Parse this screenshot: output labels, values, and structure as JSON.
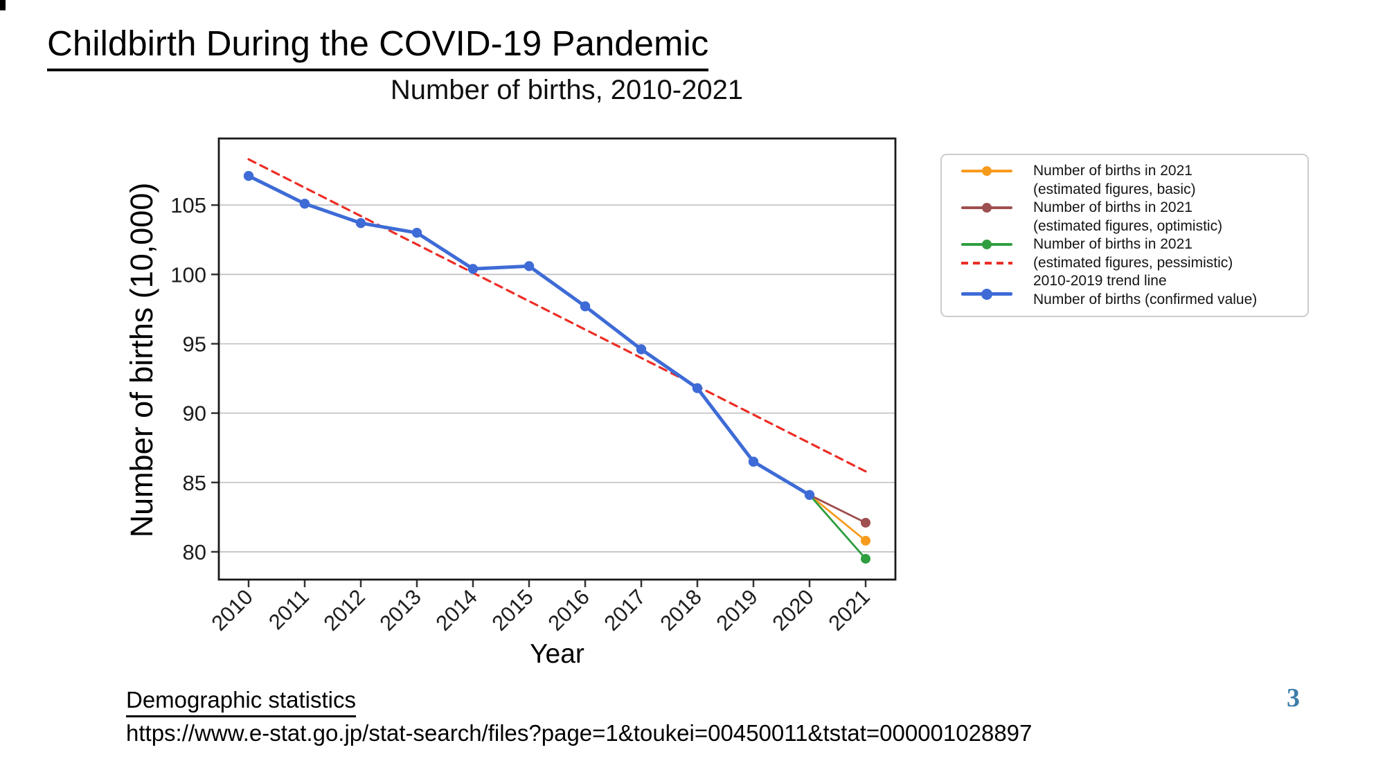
{
  "slide": {
    "heading": "Childbirth During the COVID-19 Pandemic",
    "page_number": "3",
    "source": {
      "label": "Demographic statistics",
      "url": "https://www.e-stat.go.jp/stat-search/files?page=1&toukei=00450011&tstat=000001028897"
    }
  },
  "colors": {
    "confirmed": "#3e6bd6",
    "trend": "#ec2d25",
    "basic": "#f79b1d",
    "optimistic": "#9e4f4f",
    "pessimistic": "#2e9e3e",
    "grid": "#c4c4c4",
    "axis": "#333333",
    "text": "#1d1d1d",
    "page_number": "#3c7dab"
  },
  "chart_data": {
    "type": "line",
    "title": "Number of births, 2010-2021",
    "xlabel": "Year",
    "ylabel": "Number of births (10,000)",
    "x_categories": [
      "2010",
      "2011",
      "2012",
      "2013",
      "2014",
      "2015",
      "2016",
      "2017",
      "2018",
      "2019",
      "2020",
      "2021"
    ],
    "yticks": [
      80,
      85,
      90,
      95,
      100,
      105
    ],
    "ylim": [
      78.0,
      109.8
    ],
    "grid": "horizontal",
    "legend_position": "outside-right",
    "series": [
      {
        "name": "2010-2019 trend line",
        "color_key": "trend",
        "style": "dashed",
        "marker": "none",
        "width": 3.2,
        "dash": "11 8",
        "x": [
          "2010",
          "2021"
        ],
        "values": [
          108.3,
          85.8
        ]
      },
      {
        "name": "Number of births in 2021 (estimated figures, basic)",
        "color_key": "basic",
        "style": "solid",
        "marker": "end",
        "width": 2.8,
        "x": [
          "2020",
          "2021"
        ],
        "values": [
          84.1,
          80.8
        ]
      },
      {
        "name": "Number of births in 2021 (estimated figures, optimistic)",
        "color_key": "optimistic",
        "style": "solid",
        "marker": "end",
        "width": 2.8,
        "x": [
          "2020",
          "2021"
        ],
        "values": [
          84.1,
          82.1
        ]
      },
      {
        "name": "Number of births in 2021 (estimated figures, pessimistic)",
        "color_key": "pessimistic",
        "style": "solid",
        "marker": "end",
        "width": 2.8,
        "x": [
          "2020",
          "2021"
        ],
        "values": [
          84.1,
          79.5
        ]
      },
      {
        "name": "Number of births (confirmed value)",
        "color_key": "confirmed",
        "style": "solid",
        "marker": "all",
        "width": 5,
        "x": [
          "2010",
          "2011",
          "2012",
          "2013",
          "2014",
          "2015",
          "2016",
          "2017",
          "2018",
          "2019",
          "2020"
        ],
        "values": [
          107.1,
          105.1,
          103.7,
          103.0,
          100.4,
          100.6,
          97.7,
          94.6,
          91.8,
          86.5,
          84.1
        ]
      }
    ]
  },
  "legend": {
    "rows": [
      {
        "text": "Number of births in 2021",
        "series": "basic"
      },
      {
        "text": "(estimated figures, basic)",
        "series": null
      },
      {
        "text": "Number of births in 2021",
        "series": "optimistic"
      },
      {
        "text": "(estimated figures, optimistic)",
        "series": null
      },
      {
        "text": "Number of births in 2021",
        "series": "pessimistic"
      },
      {
        "text": "(estimated figures, pessimistic)",
        "series": "trend"
      },
      {
        "text": "2010-2019 trend line",
        "series": null
      },
      {
        "text": "Number of births (confirmed value)",
        "series": "confirmed"
      }
    ]
  }
}
